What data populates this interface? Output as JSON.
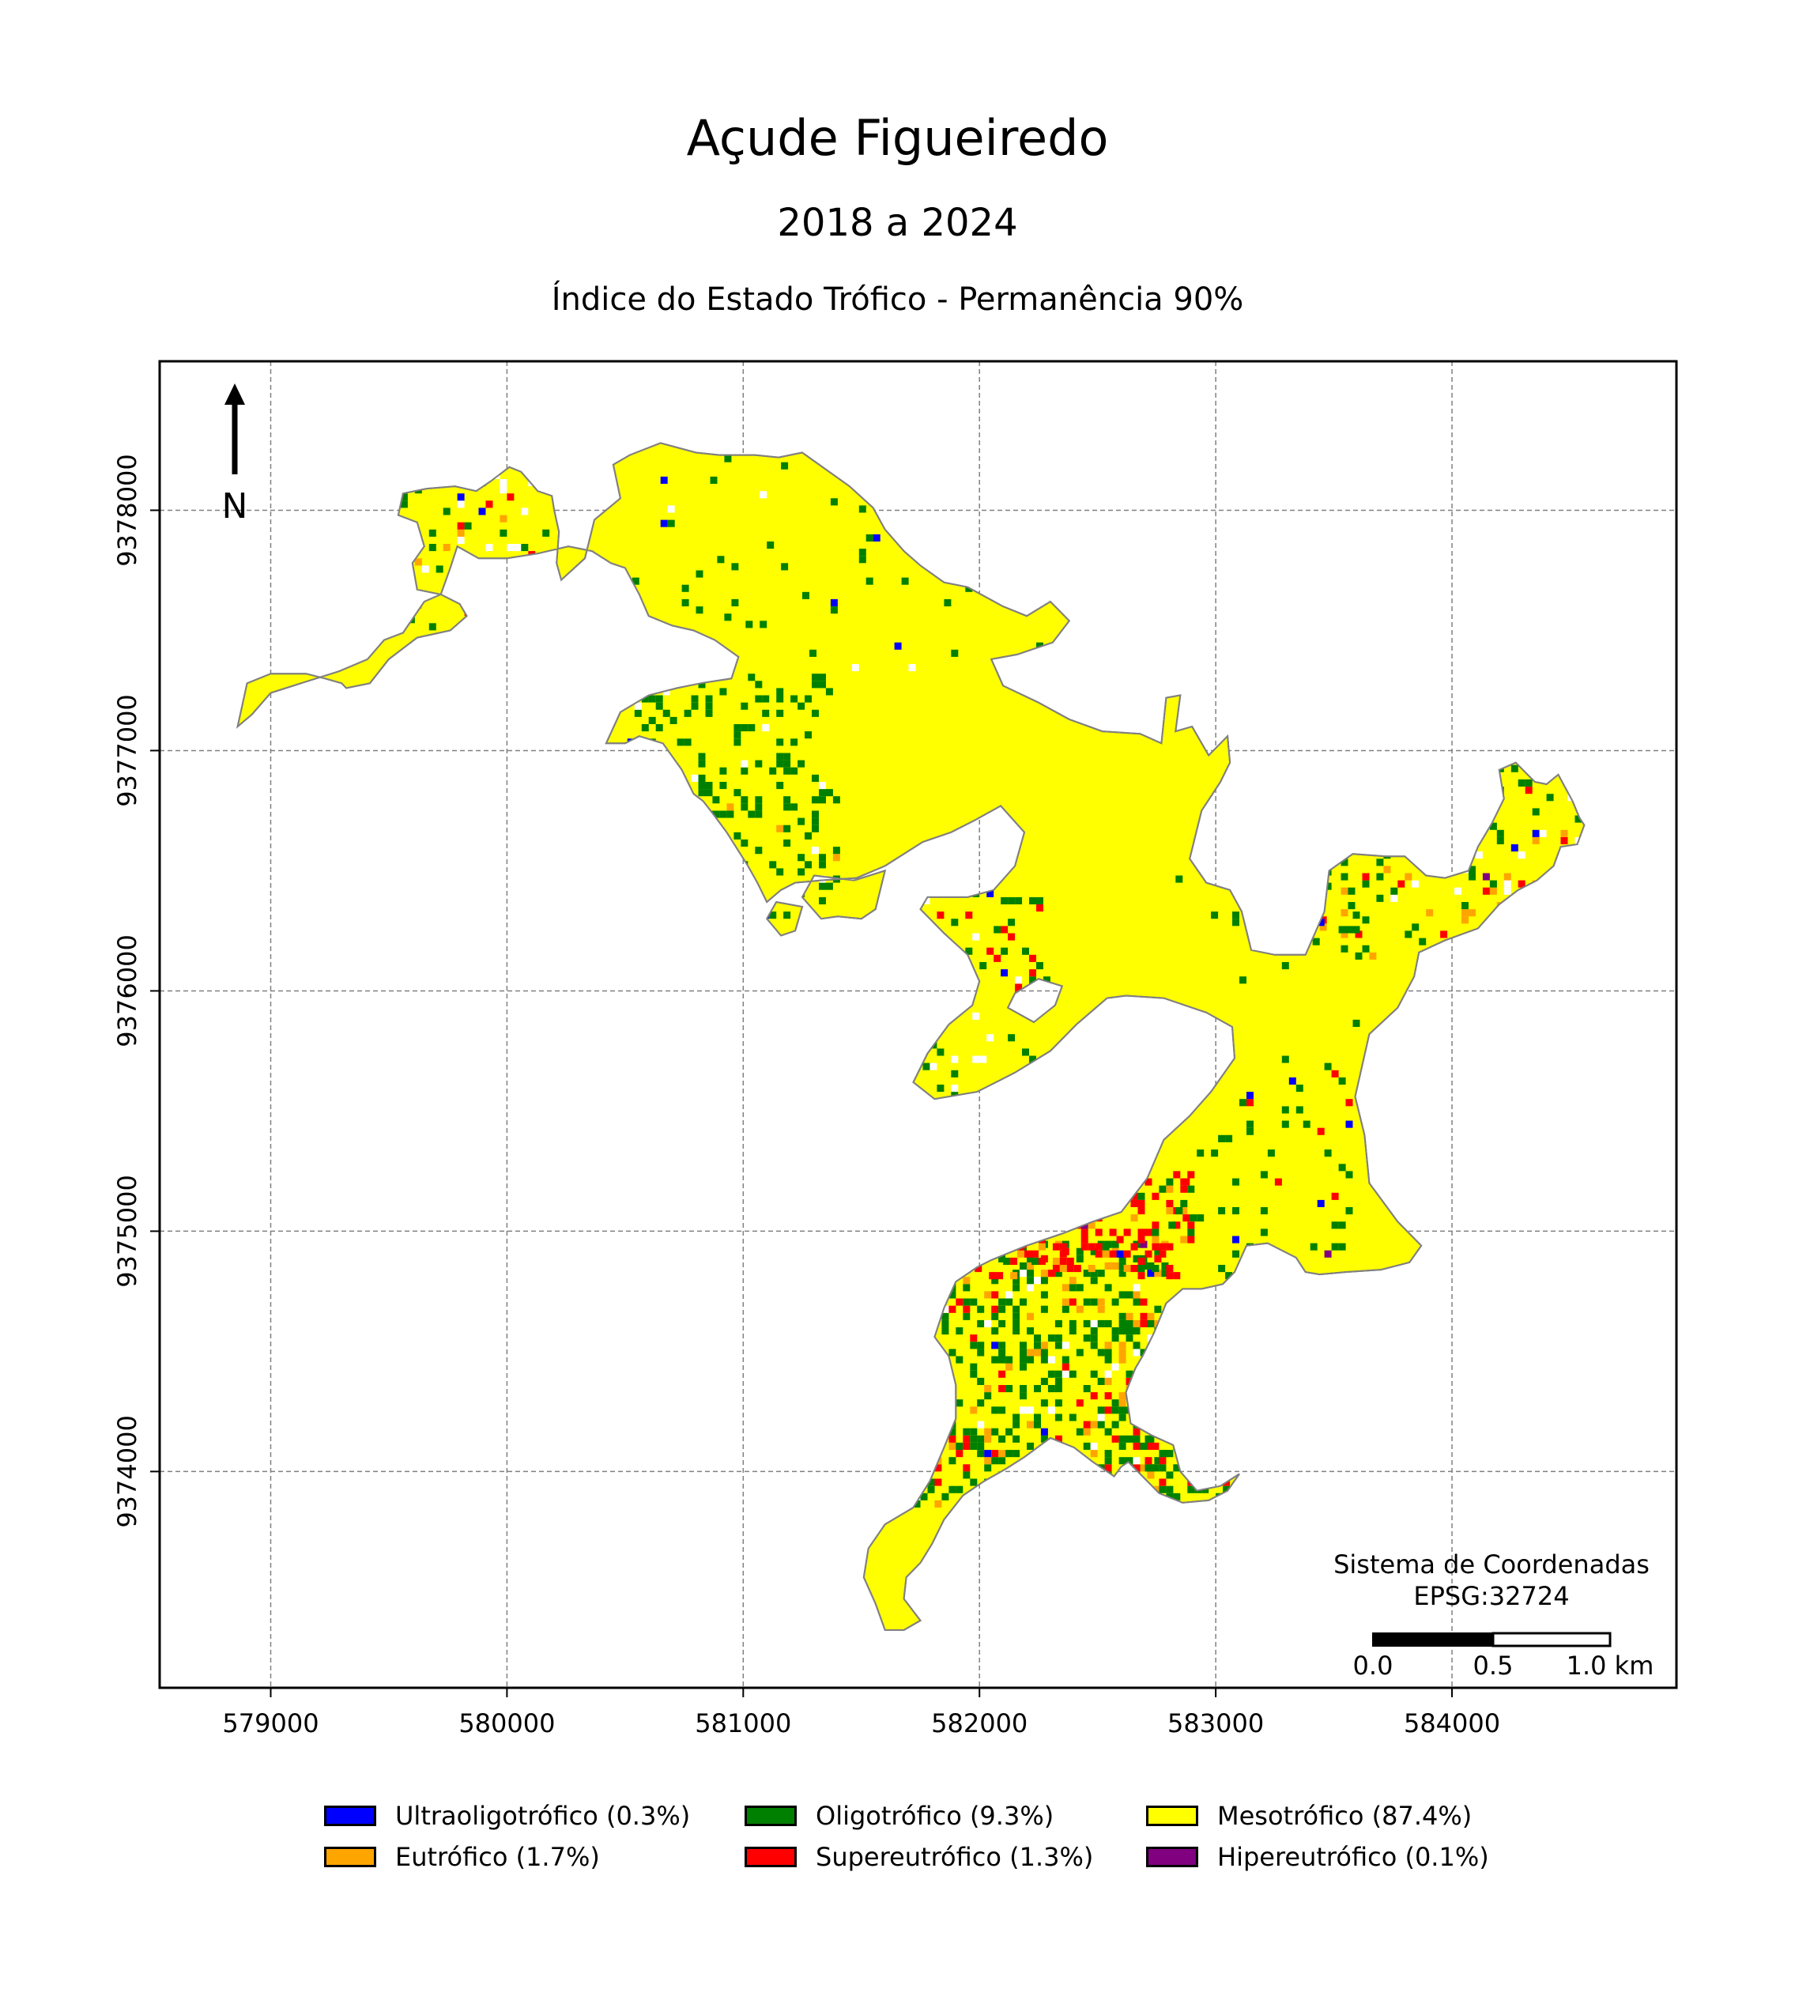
{
  "title": "Açude Figueiredo",
  "subtitle": "2018 a 2024",
  "map_title": "Índice do Estado Trófico - Permanência 90%",
  "north_label": "N",
  "crs": {
    "line1": "Sistema de Coordenadas",
    "line2": "EPSG:32724"
  },
  "scale_bar": {
    "labels": [
      "0.0",
      "0.5",
      "1.0 km"
    ]
  },
  "axes": {
    "x_ticks": [
      "579000",
      "580000",
      "581000",
      "582000",
      "583000",
      "584000"
    ],
    "y_ticks": [
      "9374000",
      "9375000",
      "9376000",
      "9377000",
      "9378000"
    ],
    "xlim": [
      578530,
      584950
    ],
    "ylim": [
      9373100,
      9378620
    ],
    "grid": true
  },
  "legend": {
    "placement": "bottom-center",
    "items": [
      {
        "label": "Ultraoligotrófico (0.3%)",
        "color": "#0000ff",
        "percent": 0.3
      },
      {
        "label": "Oligotrófico (9.3%)",
        "color": "#008000",
        "percent": 9.3
      },
      {
        "label": "Mesotrófico (87.4%)",
        "color": "#ffff00",
        "percent": 87.4
      },
      {
        "label": "Eutrófico (1.7%)",
        "color": "#ffa500",
        "percent": 1.7
      },
      {
        "label": "Supereutrófico (1.3%)",
        "color": "#ff0000",
        "percent": 1.3
      },
      {
        "label": "Hipereutrófico (0.1%)",
        "color": "#800080",
        "percent": 0.1
      }
    ]
  },
  "reservoir": {
    "fill_color": "#ffff00",
    "outline_color": "#808080",
    "outline": [
      [
        578860,
        9377100
      ],
      [
        578900,
        9377280
      ],
      [
        579000,
        9377320
      ],
      [
        579150,
        9377320
      ],
      [
        579230,
        9377300
      ],
      [
        579300,
        9377280
      ],
      [
        579320,
        9377260
      ],
      [
        579420,
        9377280
      ],
      [
        579500,
        9377380
      ],
      [
        579620,
        9377470
      ],
      [
        579760,
        9377500
      ],
      [
        579830,
        9377560
      ],
      [
        579800,
        9377610
      ],
      [
        579720,
        9377650
      ],
      [
        579620,
        9377670
      ],
      [
        579600,
        9377780
      ],
      [
        579650,
        9377850
      ],
      [
        579620,
        9377950
      ],
      [
        579540,
        9377980
      ],
      [
        579560,
        9378070
      ],
      [
        579660,
        9378090
      ],
      [
        579780,
        9378100
      ],
      [
        579870,
        9378080
      ],
      [
        579930,
        9378120
      ],
      [
        580010,
        9378180
      ],
      [
        580060,
        9378160
      ],
      [
        580130,
        9378080
      ],
      [
        580190,
        9378060
      ],
      [
        580200,
        9378000
      ],
      [
        580220,
        9377910
      ],
      [
        580210,
        9377780
      ],
      [
        580230,
        9377710
      ],
      [
        580330,
        9377800
      ],
      [
        580370,
        9377960
      ],
      [
        580480,
        9378050
      ],
      [
        580450,
        9378190
      ],
      [
        580520,
        9378230
      ],
      [
        580650,
        9378280
      ],
      [
        580800,
        9378240
      ],
      [
        580900,
        9378230
      ],
      [
        581050,
        9378230
      ],
      [
        581150,
        9378220
      ],
      [
        581250,
        9378240
      ],
      [
        581350,
        9378170
      ],
      [
        581450,
        9378100
      ],
      [
        581550,
        9378010
      ],
      [
        581600,
        9377920
      ],
      [
        581680,
        9377830
      ],
      [
        581750,
        9377770
      ],
      [
        581850,
        9377700
      ],
      [
        581950,
        9377680
      ],
      [
        582100,
        9377600
      ],
      [
        582200,
        9377560
      ],
      [
        582300,
        9377620
      ],
      [
        582380,
        9377540
      ],
      [
        582310,
        9377450
      ],
      [
        582160,
        9377400
      ],
      [
        582050,
        9377380
      ],
      [
        582100,
        9377270
      ],
      [
        582250,
        9377200
      ],
      [
        582380,
        9377130
      ],
      [
        582520,
        9377080
      ],
      [
        582680,
        9377070
      ],
      [
        582770,
        9377030
      ],
      [
        582790,
        9377220
      ],
      [
        582850,
        9377230
      ],
      [
        582830,
        9377080
      ],
      [
        582900,
        9377100
      ],
      [
        582970,
        9376980
      ],
      [
        583050,
        9377060
      ],
      [
        583060,
        9376950
      ],
      [
        583020,
        9376870
      ],
      [
        582940,
        9376750
      ],
      [
        582890,
        9376550
      ],
      [
        582960,
        9376450
      ],
      [
        583060,
        9376420
      ],
      [
        583110,
        9376330
      ],
      [
        583150,
        9376170
      ],
      [
        583250,
        9376150
      ],
      [
        583380,
        9376150
      ],
      [
        583460,
        9376330
      ],
      [
        583480,
        9376500
      ],
      [
        583580,
        9376570
      ],
      [
        583720,
        9376560
      ],
      [
        583800,
        9376560
      ],
      [
        583890,
        9376480
      ],
      [
        583970,
        9376470
      ],
      [
        584070,
        9376500
      ],
      [
        584110,
        9376600
      ],
      [
        584170,
        9376700
      ],
      [
        584220,
        9376800
      ],
      [
        584200,
        9376920
      ],
      [
        584270,
        9376950
      ],
      [
        584350,
        9376870
      ],
      [
        584400,
        9376860
      ],
      [
        584450,
        9376900
      ],
      [
        584510,
        9376790
      ],
      [
        584540,
        9376720
      ],
      [
        584560,
        9376690
      ],
      [
        584530,
        9376610
      ],
      [
        584460,
        9376600
      ],
      [
        584430,
        9376520
      ],
      [
        584360,
        9376460
      ],
      [
        584280,
        9376420
      ],
      [
        584200,
        9376360
      ],
      [
        584110,
        9376260
      ],
      [
        583970,
        9376210
      ],
      [
        583860,
        9376160
      ],
      [
        583840,
        9376060
      ],
      [
        583770,
        9375930
      ],
      [
        583650,
        9375820
      ],
      [
        583590,
        9375560
      ],
      [
        583630,
        9375400
      ],
      [
        583650,
        9375200
      ],
      [
        583770,
        9375040
      ],
      [
        583870,
        9374940
      ],
      [
        583820,
        9374870
      ],
      [
        583700,
        9374840
      ],
      [
        583550,
        9374830
      ],
      [
        583440,
        9374820
      ],
      [
        583380,
        9374830
      ],
      [
        583340,
        9374890
      ],
      [
        583220,
        9374950
      ],
      [
        583130,
        9374940
      ],
      [
        583080,
        9374830
      ],
      [
        583030,
        9374780
      ],
      [
        582940,
        9374760
      ],
      [
        582860,
        9374760
      ],
      [
        582790,
        9374700
      ],
      [
        582740,
        9374580
      ],
      [
        582690,
        9374480
      ],
      [
        582660,
        9374430
      ],
      [
        582620,
        9374330
      ],
      [
        582640,
        9374200
      ],
      [
        582730,
        9374150
      ],
      [
        582820,
        9374110
      ],
      [
        582850,
        9374000
      ],
      [
        582920,
        9373920
      ],
      [
        583020,
        9373940
      ],
      [
        583100,
        9373990
      ],
      [
        583050,
        9373920
      ],
      [
        582970,
        9373880
      ],
      [
        582860,
        9373870
      ],
      [
        582760,
        9373910
      ],
      [
        582690,
        9373980
      ],
      [
        582630,
        9374040
      ],
      [
        582600,
        9374020
      ],
      [
        582570,
        9373980
      ],
      [
        582480,
        9374040
      ],
      [
        582400,
        9374100
      ],
      [
        582300,
        9374140
      ],
      [
        582190,
        9374060
      ],
      [
        582110,
        9374010
      ],
      [
        582020,
        9373960
      ],
      [
        581930,
        9373900
      ],
      [
        581850,
        9373800
      ],
      [
        581800,
        9373700
      ],
      [
        581750,
        9373620
      ],
      [
        581690,
        9373560
      ],
      [
        581680,
        9373470
      ],
      [
        581750,
        9373380
      ],
      [
        581680,
        9373340
      ],
      [
        581600,
        9373340
      ],
      [
        581560,
        9373450
      ],
      [
        581510,
        9373560
      ],
      [
        581530,
        9373680
      ],
      [
        581600,
        9373780
      ],
      [
        581720,
        9373850
      ],
      [
        581790,
        9373960
      ],
      [
        581850,
        9374100
      ],
      [
        581900,
        9374220
      ],
      [
        581900,
        9374360
      ],
      [
        581870,
        9374480
      ],
      [
        581810,
        9374560
      ],
      [
        581850,
        9374680
      ],
      [
        581900,
        9374790
      ],
      [
        581990,
        9374850
      ],
      [
        582050,
        9374880
      ],
      [
        582200,
        9374940
      ],
      [
        582350,
        9374990
      ],
      [
        582480,
        9375040
      ],
      [
        582600,
        9375080
      ],
      [
        582710,
        9375220
      ],
      [
        582780,
        9375380
      ],
      [
        582890,
        9375480
      ],
      [
        582980,
        9375580
      ],
      [
        583080,
        9375720
      ],
      [
        583070,
        9375850
      ],
      [
        582960,
        9375910
      ],
      [
        582780,
        9375970
      ],
      [
        582620,
        9375980
      ],
      [
        582540,
        9375970
      ],
      [
        582410,
        9375860
      ],
      [
        582300,
        9375750
      ],
      [
        582150,
        9375660
      ],
      [
        581990,
        9375580
      ],
      [
        581810,
        9375550
      ],
      [
        581720,
        9375620
      ],
      [
        581780,
        9375740
      ],
      [
        581870,
        9375860
      ],
      [
        581970,
        9375940
      ],
      [
        582000,
        9376040
      ],
      [
        581950,
        9376150
      ],
      [
        581850,
        9376240
      ],
      [
        581750,
        9376340
      ],
      [
        581780,
        9376390
      ],
      [
        581950,
        9376390
      ],
      [
        582060,
        9376420
      ],
      [
        582150,
        9376520
      ],
      [
        582190,
        9376660
      ],
      [
        582090,
        9376770
      ],
      [
        581980,
        9376710
      ],
      [
        581880,
        9376660
      ],
      [
        581760,
        9376620
      ],
      [
        581600,
        9376520
      ],
      [
        581480,
        9376470
      ],
      [
        581330,
        9376460
      ],
      [
        581220,
        9376450
      ],
      [
        581160,
        9376420
      ],
      [
        581100,
        9376370
      ],
      [
        581060,
        9376450
      ],
      [
        581020,
        9376520
      ],
      [
        580930,
        9376660
      ],
      [
        580870,
        9376740
      ],
      [
        580830,
        9376790
      ],
      [
        580790,
        9376820
      ],
      [
        580740,
        9376920
      ],
      [
        580660,
        9377030
      ],
      [
        580560,
        9377060
      ],
      [
        580500,
        9377030
      ],
      [
        580420,
        9377030
      ],
      [
        580480,
        9377160
      ],
      [
        580600,
        9377230
      ],
      [
        580720,
        9377260
      ],
      [
        580820,
        9377280
      ],
      [
        580950,
        9377300
      ],
      [
        580980,
        9377390
      ],
      [
        580880,
        9377460
      ],
      [
        580790,
        9377500
      ],
      [
        580700,
        9377520
      ],
      [
        580600,
        9377560
      ],
      [
        580560,
        9377650
      ],
      [
        580500,
        9377760
      ],
      [
        580440,
        9377780
      ],
      [
        580360,
        9377830
      ],
      [
        580260,
        9377850
      ],
      [
        580130,
        9377820
      ],
      [
        580000,
        9377800
      ],
      [
        579880,
        9377800
      ],
      [
        579790,
        9377850
      ],
      [
        579760,
        9377760
      ],
      [
        579720,
        9377650
      ],
      [
        579650,
        9377620
      ],
      [
        579560,
        9377490
      ],
      [
        579480,
        9377460
      ],
      [
        579410,
        9377380
      ],
      [
        579290,
        9377330
      ],
      [
        579160,
        9377290
      ],
      [
        579000,
        9377240
      ],
      [
        578920,
        9377150
      ],
      [
        578860,
        9377100
      ]
    ],
    "islands": [
      [
        [
          581560,
          9376340
        ],
        [
          581600,
          9376500
        ],
        [
          581470,
          9376460
        ],
        [
          581300,
          9376480
        ],
        [
          581250,
          9376390
        ],
        [
          581330,
          9376300
        ],
        [
          581400,
          9376310
        ],
        [
          581500,
          9376300
        ],
        [
          581560,
          9376340
        ]
      ],
      [
        [
          581220,
          9376250
        ],
        [
          581250,
          9376350
        ],
        [
          581140,
          9376370
        ],
        [
          581100,
          9376300
        ],
        [
          581160,
          9376230
        ],
        [
          581220,
          9376250
        ]
      ],
      [
        [
          582230,
          9375870
        ],
        [
          582320,
          9375940
        ],
        [
          582350,
          9376020
        ],
        [
          582250,
          9376050
        ],
        [
          582150,
          9375990
        ],
        [
          582120,
          9375930
        ],
        [
          582230,
          9375870
        ]
      ]
    ]
  }
}
